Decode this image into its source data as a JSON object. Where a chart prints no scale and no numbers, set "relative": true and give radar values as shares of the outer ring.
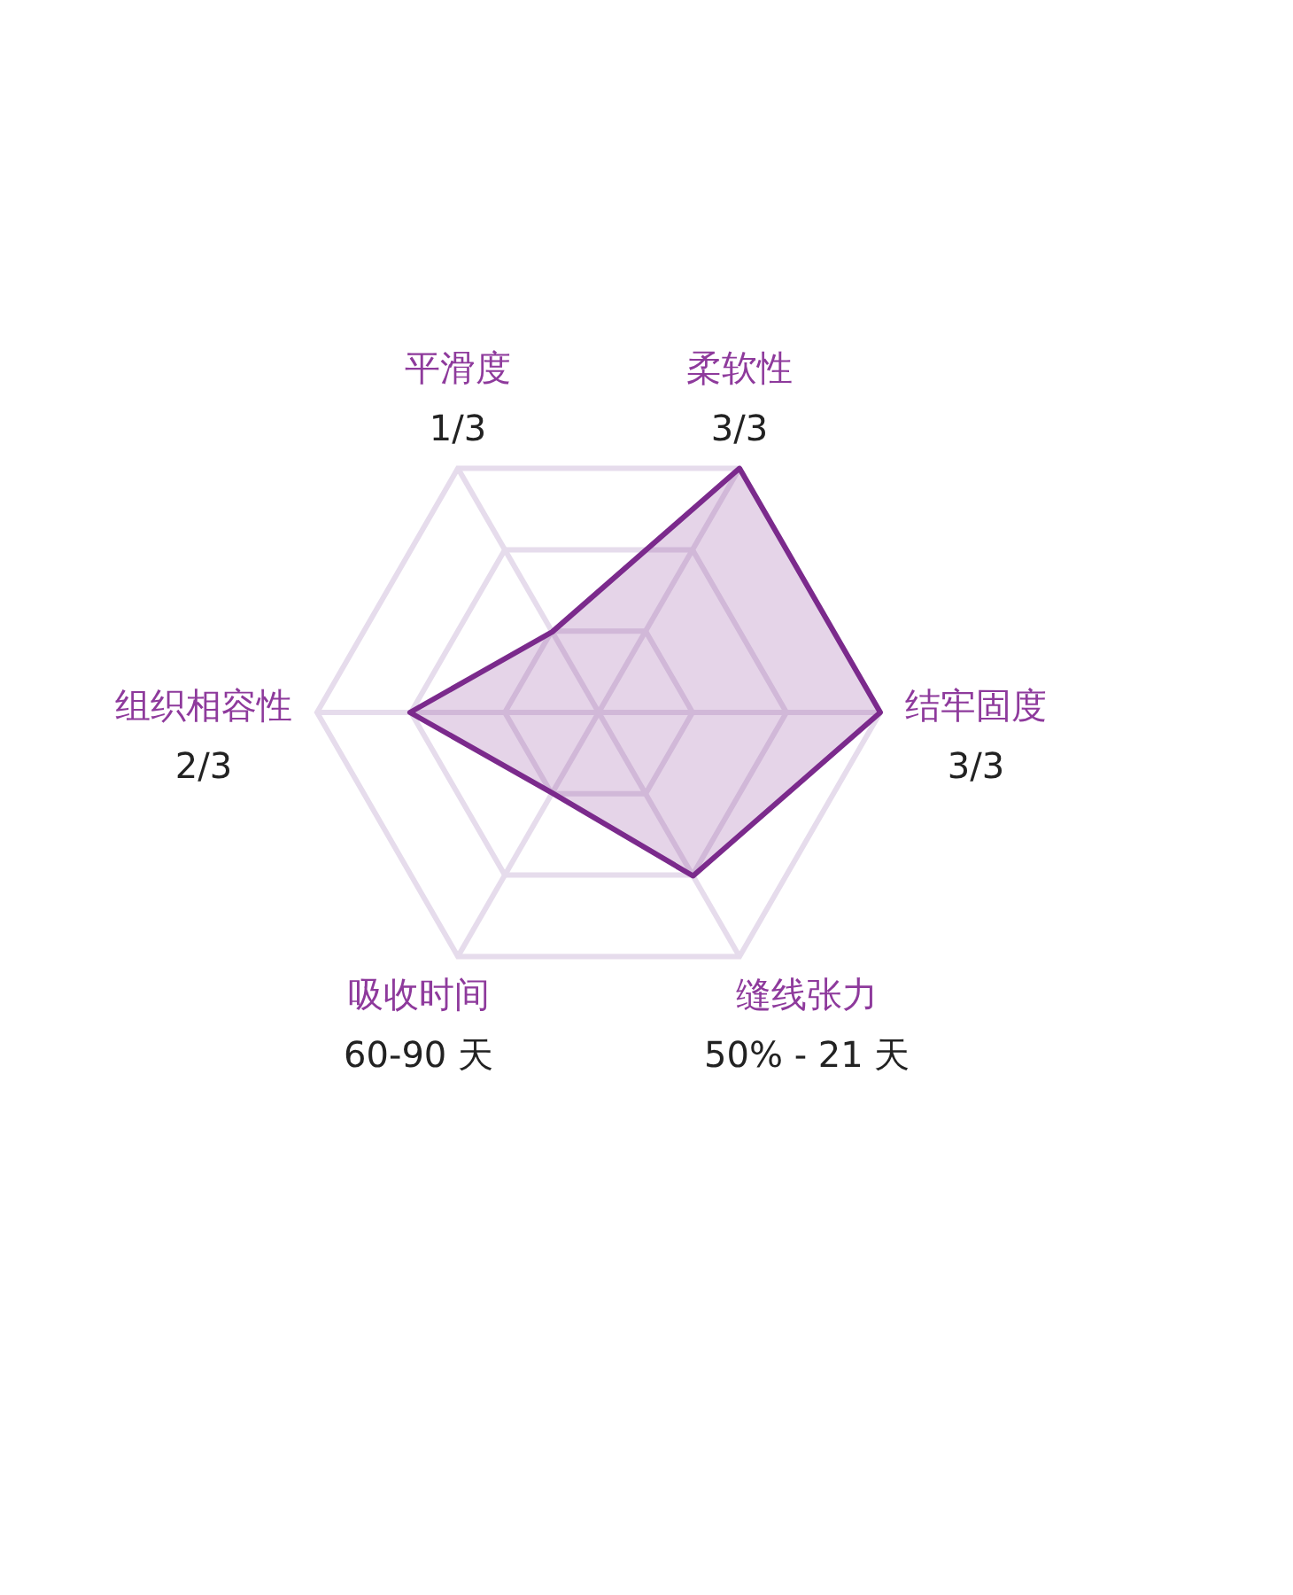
{
  "chart_data": {
    "type": "radar",
    "categories": [
      "柔软性",
      "结牢固度",
      "缝线张力",
      "吸收时间",
      "组织相容性",
      "平滑度"
    ],
    "series": [
      {
        "color": "#7b2a8c",
        "values": [
          1,
          1,
          0.67,
          0.33,
          0.67,
          0.33
        ]
      }
    ],
    "relative": true,
    "annotations": [
      "3/3",
      "3/3",
      "50% - 21 天",
      "60-90 天",
      "2/3",
      "1/3"
    ],
    "grid": true,
    "legend": false,
    "marker": "none"
  }
}
